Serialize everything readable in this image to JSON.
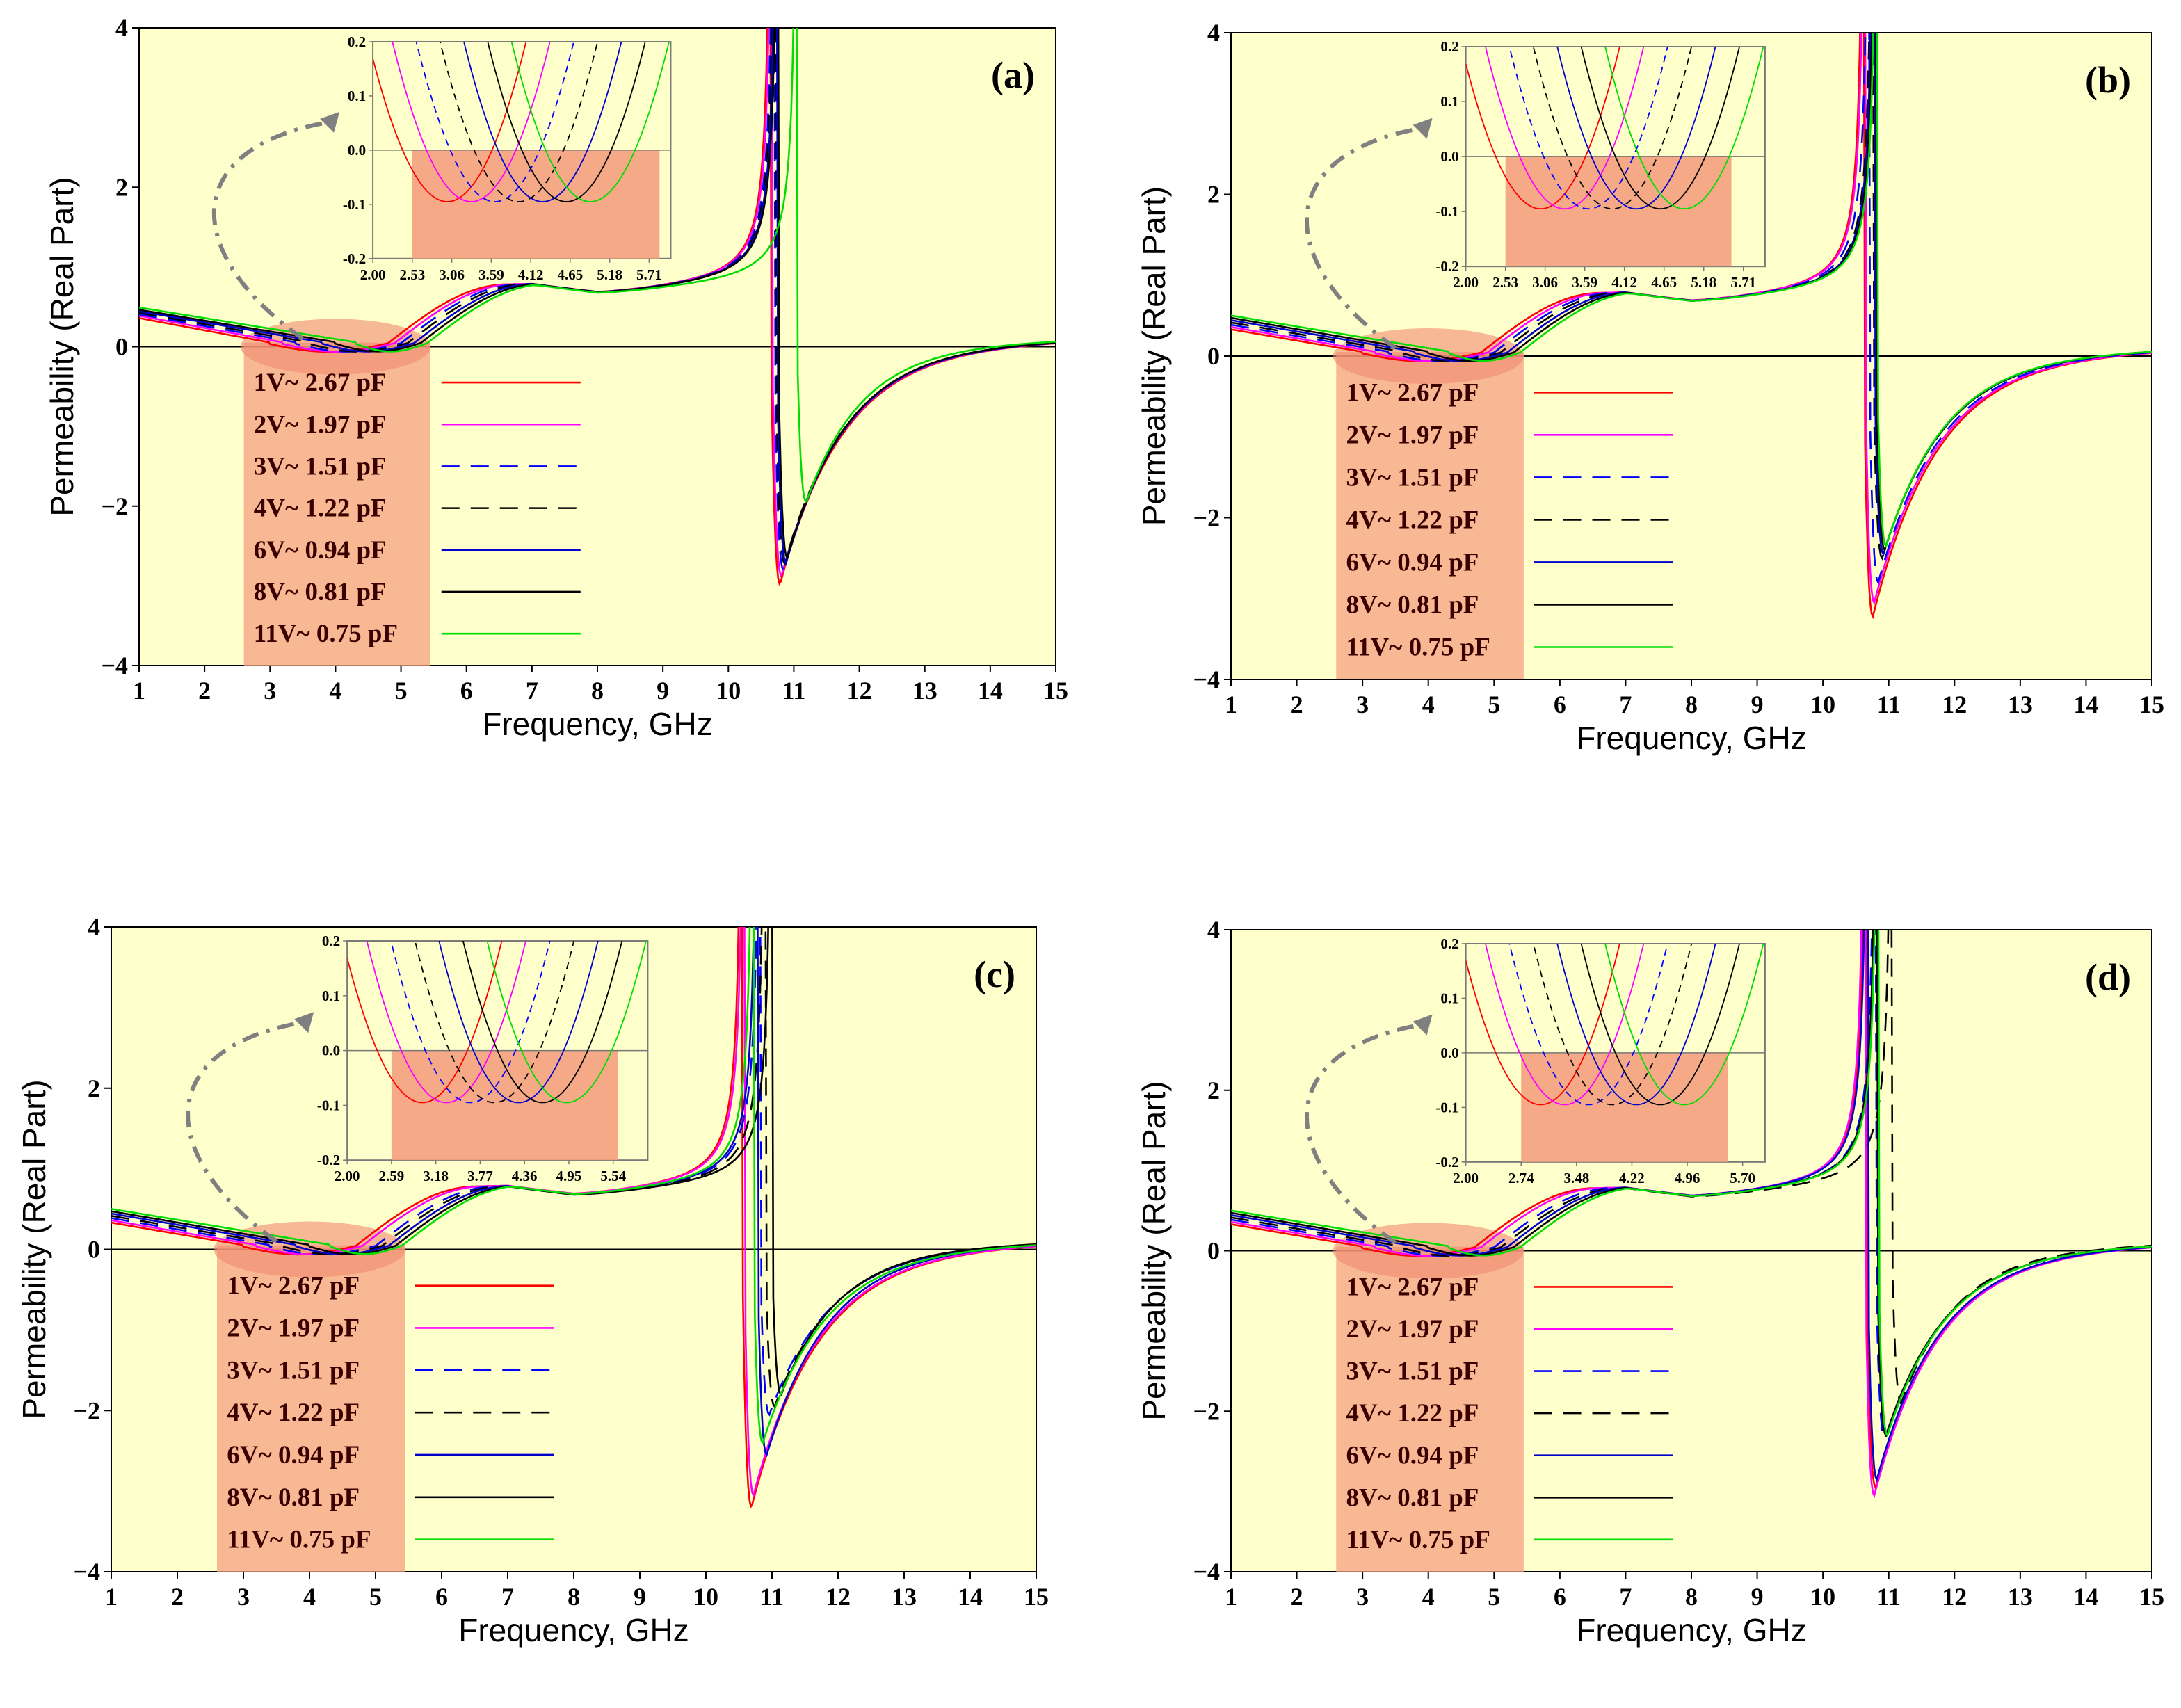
{
  "figure": {
    "xlabel": "Frequency, GHz",
    "ylabel": "Permeability (Real Part)",
    "legend": [
      {
        "label": "1V~ 2.67 pF",
        "color": "#ff0000",
        "dash": "solid"
      },
      {
        "label": "2V~ 1.97 pF",
        "color": "#ff00ff",
        "dash": "solid"
      },
      {
        "label": "3V~ 1.51 pF",
        "color": "#0000ff",
        "dash": "dashed"
      },
      {
        "label": "4V~ 1.22 pF",
        "color": "#000000",
        "dash": "dashed"
      },
      {
        "label": "6V~ 0.94 pF",
        "color": "#0000cc",
        "dash": "solid"
      },
      {
        "label": "8V~ 0.81 pF",
        "color": "#000000",
        "dash": "solid"
      },
      {
        "label": "11V~ 0.75 pF",
        "color": "#00dd00",
        "dash": "solid"
      }
    ],
    "highlight_color": "#f4a080"
  },
  "chart_data": [
    {
      "id": "a",
      "panel_label": "(a)",
      "type": "line",
      "title": "",
      "xlabel": "Frequency, GHz",
      "ylabel": "Permeability (Real Part)",
      "xlim": [
        1,
        15
      ],
      "ylim": [
        -4,
        4
      ],
      "xticks": [
        "1",
        "2",
        "3",
        "4",
        "5",
        "6",
        "7",
        "8",
        "9",
        "10",
        "11",
        "12",
        "13",
        "14",
        "15"
      ],
      "yticks": [
        "4",
        "2",
        "0",
        "−2",
        "−4"
      ],
      "series": [
        {
          "name": "1V~ 2.67 pF",
          "f0": 10.65,
          "min_depth": -2.98,
          "low_f_start": 0.33,
          "zero_crossing": [
            3.0,
            4.8
          ]
        },
        {
          "name": "2V~ 1.97 pF",
          "f0": 10.67,
          "min_depth": -2.88,
          "low_f_start": 0.36,
          "zero_crossing": [
            3.2,
            4.9
          ]
        },
        {
          "name": "3V~ 1.51 pF",
          "f0": 10.7,
          "min_depth": -2.8,
          "low_f_start": 0.38,
          "zero_crossing": [
            3.4,
            5.0
          ]
        },
        {
          "name": "4V~ 1.22 pF",
          "f0": 10.72,
          "min_depth": -2.72,
          "low_f_start": 0.4,
          "zero_crossing": [
            3.6,
            5.1
          ]
        },
        {
          "name": "6V~ 0.94 pF",
          "f0": 10.74,
          "min_depth": -2.72,
          "low_f_start": 0.42,
          "zero_crossing": [
            3.8,
            5.2
          ]
        },
        {
          "name": "8V~ 0.81 pF",
          "f0": 10.76,
          "min_depth": -2.65,
          "low_f_start": 0.44,
          "zero_crossing": [
            4.0,
            5.3
          ]
        },
        {
          "name": "11V~ 0.75 pF",
          "f0": 11.05,
          "min_depth": -1.95,
          "low_f_start": 0.47,
          "zero_crossing": [
            4.3,
            5.4
          ]
        }
      ],
      "inset": {
        "xlim": [
          2.0,
          6.0
        ],
        "ylim": [
          -0.2,
          0.2
        ],
        "xticks": [
          "2.00",
          "2.53",
          "3.06",
          "3.59",
          "4.12",
          "4.65",
          "5.18",
          "5.71"
        ],
        "yticks": [
          "0.2",
          "0.1",
          "0.0",
          "-0.1",
          "-0.2"
        ],
        "shade_x": [
          2.53,
          5.85
        ]
      }
    },
    {
      "id": "b",
      "panel_label": "(b)",
      "type": "line",
      "title": "",
      "xlabel": "Frequency, GHz",
      "ylabel": "Permeability (Real Part)",
      "xlim": [
        1,
        15
      ],
      "ylim": [
        -4,
        4
      ],
      "xticks": [
        "1",
        "2",
        "3",
        "4",
        "5",
        "6",
        "7",
        "8",
        "9",
        "10",
        "11",
        "12",
        "13",
        "14",
        "15"
      ],
      "yticks": [
        "4",
        "2",
        "0",
        "−2",
        "−4"
      ],
      "series": [
        {
          "name": "1V~ 2.67 pF",
          "f0": 10.62,
          "min_depth": -3.22,
          "low_f_start": 0.3,
          "zero_crossing": [
            3.0,
            4.8
          ]
        },
        {
          "name": "2V~ 1.97 pF",
          "f0": 10.64,
          "min_depth": -3.05,
          "low_f_start": 0.33,
          "zero_crossing": [
            3.2,
            4.9
          ]
        },
        {
          "name": "3V~ 1.51 pF",
          "f0": 10.7,
          "min_depth": -2.8,
          "low_f_start": 0.36,
          "zero_crossing": [
            3.4,
            5.0
          ]
        },
        {
          "name": "4V~ 1.22 pF",
          "f0": 10.76,
          "min_depth": -2.5,
          "low_f_start": 0.39,
          "zero_crossing": [
            3.6,
            5.1
          ]
        },
        {
          "name": "6V~ 0.94 pF",
          "f0": 10.78,
          "min_depth": -2.45,
          "low_f_start": 0.42,
          "zero_crossing": [
            3.8,
            5.2
          ]
        },
        {
          "name": "8V~ 0.81 pF",
          "f0": 10.8,
          "min_depth": -2.4,
          "low_f_start": 0.45,
          "zero_crossing": [
            4.0,
            5.3
          ]
        },
        {
          "name": "11V~ 0.75 pF",
          "f0": 10.82,
          "min_depth": -2.35,
          "low_f_start": 0.48,
          "zero_crossing": [
            4.3,
            5.4
          ]
        }
      ],
      "inset": {
        "xlim": [
          2.0,
          6.0
        ],
        "ylim": [
          -0.2,
          0.2
        ],
        "xticks": [
          "2.00",
          "2.53",
          "3.06",
          "3.59",
          "4.12",
          "4.65",
          "5.18",
          "5.71"
        ],
        "yticks": [
          "0.2",
          "0.1",
          "0.0",
          "-0.1",
          "-0.2"
        ],
        "shade_x": [
          2.53,
          5.55
        ]
      }
    },
    {
      "id": "c",
      "panel_label": "(c)",
      "type": "line",
      "title": "",
      "xlabel": "Frequency, GHz",
      "ylabel": "Permeability (Real Part)",
      "xlim": [
        1,
        15
      ],
      "ylim": [
        -4,
        4
      ],
      "xticks": [
        "1",
        "2",
        "3",
        "4",
        "5",
        "6",
        "7",
        "8",
        "9",
        "10",
        "11",
        "12",
        "13",
        "14",
        "15"
      ],
      "yticks": [
        "4",
        "2",
        "0",
        "−2",
        "−4"
      ],
      "series": [
        {
          "name": "1V~ 2.67 pF",
          "f0": 10.55,
          "min_depth": -3.2,
          "low_f_start": 0.3,
          "zero_crossing": [
            3.0,
            4.7
          ]
        },
        {
          "name": "2V~ 1.97 pF",
          "f0": 10.58,
          "min_depth": -3.05,
          "low_f_start": 0.33,
          "zero_crossing": [
            3.2,
            4.8
          ]
        },
        {
          "name": "3V~ 1.51 pF",
          "f0": 10.82,
          "min_depth": -2.05,
          "low_f_start": 0.36,
          "zero_crossing": [
            3.4,
            5.0
          ]
        },
        {
          "name": "4V~ 1.22 pF",
          "f0": 10.9,
          "min_depth": -1.95,
          "low_f_start": 0.39,
          "zero_crossing": [
            3.6,
            5.1
          ]
        },
        {
          "name": "6V~ 0.94 pF",
          "f0": 10.78,
          "min_depth": -2.55,
          "low_f_start": 0.42,
          "zero_crossing": [
            3.8,
            5.2
          ]
        },
        {
          "name": "8V~ 0.81 pF",
          "f0": 11.0,
          "min_depth": -1.8,
          "low_f_start": 0.45,
          "zero_crossing": [
            4.0,
            5.3
          ]
        },
        {
          "name": "11V~ 0.75 pF",
          "f0": 10.72,
          "min_depth": -2.4,
          "low_f_start": 0.48,
          "zero_crossing": [
            4.3,
            5.4
          ]
        }
      ],
      "inset": {
        "xlim": [
          2.0,
          6.0
        ],
        "ylim": [
          -0.2,
          0.2
        ],
        "xticks": [
          "2.00",
          "2.59",
          "3.18",
          "3.77",
          "4.36",
          "4.95",
          "5.54"
        ],
        "yticks": [
          "0.2",
          "0.1",
          "0.0",
          "-0.1",
          "-0.2"
        ],
        "shade_x": [
          2.59,
          5.6
        ]
      }
    },
    {
      "id": "d",
      "panel_label": "(d)",
      "type": "line",
      "title": "",
      "xlabel": "Frequency, GHz",
      "ylabel": "Permeability (Real Part)",
      "xlim": [
        1,
        15
      ],
      "ylim": [
        -4,
        4
      ],
      "xticks": [
        "1",
        "2",
        "3",
        "4",
        "5",
        "6",
        "7",
        "8",
        "9",
        "10",
        "11",
        "12",
        "13",
        "14",
        "15"
      ],
      "yticks": [
        "4",
        "2",
        "0",
        "−2",
        "−4"
      ],
      "series": [
        {
          "name": "1V~ 2.67 pF",
          "f0": 10.66,
          "min_depth": -2.95,
          "low_f_start": 0.3,
          "zero_crossing": [
            3.0,
            4.7
          ]
        },
        {
          "name": "2V~ 1.97 pF",
          "f0": 10.64,
          "min_depth": -3.05,
          "low_f_start": 0.33,
          "zero_crossing": [
            3.2,
            4.8
          ]
        },
        {
          "name": "3V~ 1.51 pF",
          "f0": 10.8,
          "min_depth": -2.35,
          "low_f_start": 0.36,
          "zero_crossing": [
            3.4,
            5.0
          ]
        },
        {
          "name": "4V~ 1.22 pF",
          "f0": 11.05,
          "min_depth": -1.9,
          "low_f_start": 0.39,
          "zero_crossing": [
            3.6,
            5.1
          ]
        },
        {
          "name": "6V~ 0.94 pF",
          "f0": 10.68,
          "min_depth": -2.85,
          "low_f_start": 0.42,
          "zero_crossing": [
            3.8,
            5.2
          ]
        },
        {
          "name": "8V~ 0.81 pF",
          "f0": 10.82,
          "min_depth": -2.3,
          "low_f_start": 0.45,
          "zero_crossing": [
            4.0,
            5.3
          ]
        },
        {
          "name": "11V~ 0.75 pF",
          "f0": 10.84,
          "min_depth": -2.3,
          "low_f_start": 0.48,
          "zero_crossing": [
            4.3,
            5.4
          ]
        }
      ],
      "inset": {
        "xlim": [
          2.0,
          6.0
        ],
        "ylim": [
          -0.2,
          0.2
        ],
        "xticks": [
          "2.00",
          "2.74",
          "3.48",
          "4.22",
          "4.96",
          "5.70"
        ],
        "yticks": [
          "0.2",
          "0.1",
          "0.0",
          "-0.1",
          "-0.2"
        ],
        "shade_x": [
          2.74,
          5.5
        ]
      }
    }
  ]
}
